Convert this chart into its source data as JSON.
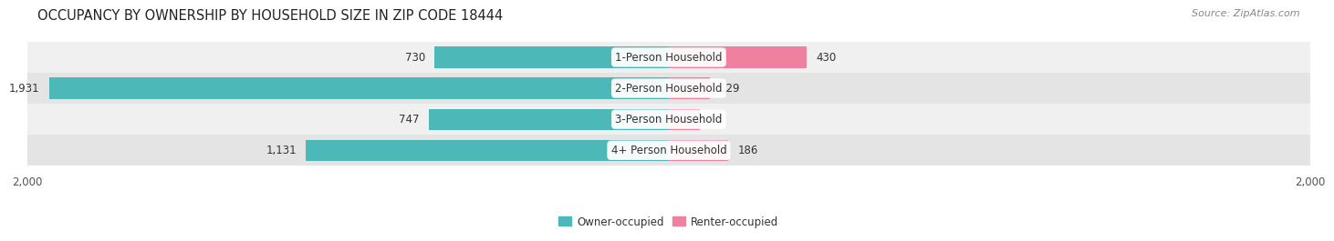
{
  "title": "OCCUPANCY BY OWNERSHIP BY HOUSEHOLD SIZE IN ZIP CODE 18444",
  "source": "Source: ZipAtlas.com",
  "categories": [
    "1-Person Household",
    "2-Person Household",
    "3-Person Household",
    "4+ Person Household"
  ],
  "owner_values": [
    730,
    1931,
    747,
    1131
  ],
  "renter_values": [
    430,
    129,
    98,
    186
  ],
  "owner_color": "#4cb8b8",
  "owner_color_dark": "#2a9a9a",
  "renter_color": "#f080a0",
  "renter_color_light": "#f8b8cc",
  "row_colors": [
    "#f0f0f0",
    "#e4e4e4"
  ],
  "axis_limit": 2000,
  "title_fontsize": 10.5,
  "source_fontsize": 8,
  "tick_fontsize": 8.5,
  "bar_label_fontsize": 8.5,
  "category_fontsize": 8.5,
  "legend_fontsize": 8.5,
  "background_color": "#ffffff",
  "text_color": "#333333",
  "tick_color": "#555555"
}
